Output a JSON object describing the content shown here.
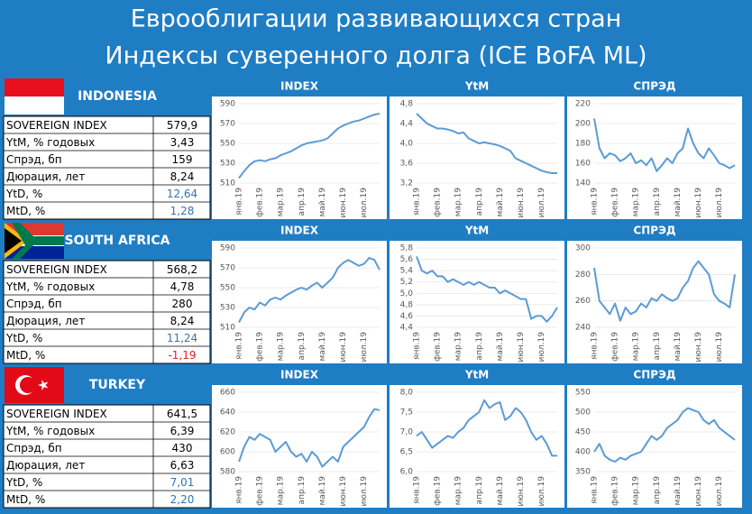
{
  "title": [
    "Еврооблигации развивающихся стран",
    "Индексы суверенного долга (ICE BoFA ML)"
  ],
  "panels": [
    {
      "country": "INDONESIA",
      "rows": [
        [
          "SOVEREIGN INDEX",
          "579,9"
        ],
        [
          "YtM, % годовых",
          "3,43"
        ],
        [
          "Спрэд, бп",
          "159"
        ],
        [
          "Дюрация, лет",
          "8,24"
        ],
        [
          "YtD, %",
          "12,64"
        ],
        [
          "MtD, %",
          "1,28"
        ]
      ]
    },
    {
      "country": "SOUTH AFRICA",
      "rows": [
        [
          "SOVEREIGN INDEX",
          "568,2"
        ],
        [
          "YtM, % годовых",
          "4,78"
        ],
        [
          "Спрэд, бп",
          "280"
        ],
        [
          "Дюрация, лет",
          "8,24"
        ],
        [
          "YtD, %",
          "11,24"
        ],
        [
          "MtD, %",
          "-1,19"
        ]
      ]
    },
    {
      "country": "TURKEY",
      "rows": [
        [
          "SOVEREIGN INDEX",
          "641,5"
        ],
        [
          "YtM, % годовых",
          "6,39"
        ],
        [
          "Спрэд, бп",
          "430"
        ],
        [
          "Дюрация, лет",
          "6,63"
        ],
        [
          "YtD, %",
          "7,01"
        ],
        [
          "MtD, %",
          "2,20"
        ]
      ]
    }
  ],
  "chart_data": [
    {
      "type": "line",
      "title": "INDEX",
      "color": "#5b9bd5",
      "categories": [
        "янв.19",
        null,
        null,
        null,
        "фев.19",
        null,
        null,
        null,
        "мар.19",
        null,
        null,
        null,
        "апр.19",
        null,
        null,
        null,
        "май.19",
        null,
        null,
        null,
        "июн.19",
        null,
        null,
        null,
        "июл.19",
        null,
        null,
        null
      ],
      "values": [
        515,
        522,
        528,
        532,
        533,
        532,
        534,
        535,
        538,
        540,
        542,
        545,
        548,
        550,
        551,
        552,
        553,
        555,
        560,
        565,
        568,
        570,
        572,
        573,
        575,
        577,
        579,
        580
      ],
      "ylim": [
        510,
        590
      ],
      "yticks": [
        510,
        530,
        550,
        570,
        590
      ]
    },
    {
      "type": "line",
      "title": "YtM",
      "color": "#5b9bd5",
      "categories": [
        "янв.19",
        null,
        null,
        null,
        "фев.19",
        null,
        null,
        null,
        "мар.19",
        null,
        null,
        null,
        "апр.19",
        null,
        null,
        null,
        "май.19",
        null,
        null,
        null,
        "июн.19",
        null,
        null,
        null,
        "июл.19",
        null,
        null,
        null
      ],
      "values": [
        4.6,
        4.5,
        4.4,
        4.35,
        4.3,
        4.3,
        4.28,
        4.25,
        4.2,
        4.22,
        4.1,
        4.05,
        4.0,
        4.02,
        4.0,
        3.98,
        3.95,
        3.9,
        3.85,
        3.7,
        3.65,
        3.6,
        3.55,
        3.5,
        3.45,
        3.42,
        3.4,
        3.4
      ],
      "ylim": [
        3.2,
        4.8
      ],
      "yticks": [
        {
          "value": 3.2,
          "label": "3,2"
        },
        {
          "value": 3.6,
          "label": "3,6"
        },
        {
          "value": 4.0,
          "label": "4,0"
        },
        {
          "value": 4.4,
          "label": "4,4"
        },
        {
          "value": 4.8,
          "label": "4,8"
        }
      ]
    },
    {
      "type": "line",
      "title": "СПРЭД",
      "color": "#5b9bd5",
      "categories": [
        "янв.19",
        null,
        null,
        null,
        "фев.19",
        null,
        null,
        null,
        "мар.19",
        null,
        null,
        null,
        "апр.19",
        null,
        null,
        null,
        "май.19",
        null,
        null,
        null,
        "июн.19",
        null,
        null,
        null,
        "июл.19",
        null,
        null,
        null
      ],
      "values": [
        205,
        175,
        165,
        170,
        168,
        162,
        165,
        170,
        160,
        163,
        158,
        165,
        152,
        158,
        165,
        160,
        170,
        175,
        195,
        180,
        170,
        165,
        175,
        168,
        160,
        158,
        155,
        158
      ],
      "ylim": [
        140,
        220
      ],
      "yticks": [
        140,
        160,
        180,
        200,
        220
      ]
    },
    {
      "type": "line",
      "title": "INDEX",
      "color": "#5b9bd5",
      "categories": [
        "янв.19",
        null,
        null,
        null,
        "фев.19",
        null,
        null,
        null,
        "мар.19",
        null,
        null,
        null,
        "апр.19",
        null,
        null,
        null,
        "май.19",
        null,
        null,
        null,
        "июн.19",
        null,
        null,
        null,
        "июл.19",
        null,
        null,
        null
      ],
      "values": [
        515,
        525,
        530,
        528,
        535,
        532,
        538,
        540,
        538,
        542,
        545,
        548,
        550,
        548,
        552,
        555,
        550,
        555,
        560,
        570,
        575,
        578,
        575,
        572,
        574,
        580,
        578,
        568
      ],
      "ylim": [
        510,
        590
      ],
      "yticks": [
        510,
        530,
        550,
        570,
        590
      ]
    },
    {
      "type": "line",
      "title": "YtM",
      "color": "#5b9bd5",
      "categories": [
        "янв.19",
        null,
        null,
        null,
        "фев.19",
        null,
        null,
        null,
        "мар.19",
        null,
        null,
        null,
        "апр.19",
        null,
        null,
        null,
        "май.19",
        null,
        null,
        null,
        "июн.19",
        null,
        null,
        null,
        "июл.19",
        null,
        null,
        null
      ],
      "values": [
        5.65,
        5.4,
        5.35,
        5.4,
        5.3,
        5.3,
        5.2,
        5.25,
        5.2,
        5.15,
        5.2,
        5.15,
        5.2,
        5.15,
        5.1,
        5.1,
        5.0,
        5.05,
        5.0,
        4.95,
        4.9,
        4.9,
        4.55,
        4.6,
        4.6,
        4.5,
        4.6,
        4.75
      ],
      "ylim": [
        4.4,
        5.8
      ],
      "yticks": [
        {
          "value": 4.4,
          "label": "4,4"
        },
        {
          "value": 4.6,
          "label": "4,6"
        },
        {
          "value": 4.8,
          "label": "4,8"
        },
        {
          "value": 5.0,
          "label": "5,0"
        },
        {
          "value": 5.2,
          "label": "5,2"
        },
        {
          "value": 5.4,
          "label": "5,4"
        },
        {
          "value": 5.6,
          "label": "5,6"
        },
        {
          "value": 5.8,
          "label": "5,8"
        }
      ]
    },
    {
      "type": "line",
      "title": "СПРЭД",
      "color": "#5b9bd5",
      "categories": [
        "янв.19",
        null,
        null,
        null,
        "фев.19",
        null,
        null,
        null,
        "мар.19",
        null,
        null,
        null,
        "апр.19",
        null,
        null,
        null,
        "май.19",
        null,
        null,
        null,
        "июн.19",
        null,
        null,
        null,
        "июл.19",
        null,
        null,
        null
      ],
      "values": [
        285,
        260,
        255,
        250,
        258,
        245,
        255,
        250,
        252,
        258,
        255,
        262,
        260,
        265,
        262,
        260,
        262,
        270,
        275,
        285,
        290,
        285,
        280,
        265,
        260,
        258,
        255,
        280
      ],
      "ylim": [
        240,
        300
      ],
      "yticks": [
        240,
        260,
        280,
        300
      ]
    },
    {
      "type": "line",
      "title": "INDEX",
      "color": "#5b9bd5",
      "categories": [
        "янв.19",
        null,
        null,
        null,
        "фев.19",
        null,
        null,
        null,
        "мар.19",
        null,
        null,
        null,
        "апр.19",
        null,
        null,
        null,
        "май.19",
        null,
        null,
        null,
        "июн.19",
        null,
        null,
        null,
        "июл.19",
        null,
        null,
        null
      ],
      "values": [
        590,
        605,
        615,
        612,
        618,
        615,
        612,
        600,
        605,
        610,
        600,
        595,
        598,
        590,
        600,
        595,
        585,
        590,
        595,
        590,
        605,
        610,
        615,
        620,
        625,
        635,
        643,
        642
      ],
      "ylim": [
        580,
        660
      ],
      "yticks": [
        580,
        600,
        620,
        640,
        660
      ]
    },
    {
      "type": "line",
      "title": "YtM",
      "color": "#5b9bd5",
      "categories": [
        "янв.19",
        null,
        null,
        null,
        "фев.19",
        null,
        null,
        null,
        "мар.19",
        null,
        null,
        null,
        "апр.19",
        null,
        null,
        null,
        "май.19",
        null,
        null,
        null,
        "июн.19",
        null,
        null,
        null,
        "июл.19",
        null,
        null,
        null
      ],
      "values": [
        6.9,
        7.0,
        6.8,
        6.6,
        6.7,
        6.8,
        6.9,
        6.85,
        7.0,
        7.1,
        7.3,
        7.4,
        7.5,
        7.8,
        7.6,
        7.7,
        7.75,
        7.3,
        7.4,
        7.6,
        7.5,
        7.3,
        7.0,
        6.8,
        6.9,
        6.7,
        6.4,
        6.4
      ],
      "ylim": [
        6.0,
        8.0
      ],
      "yticks": [
        {
          "value": 6.0,
          "label": "6,0"
        },
        {
          "value": 6.5,
          "label": "6,5"
        },
        {
          "value": 7.0,
          "label": "7,0"
        },
        {
          "value": 7.5,
          "label": "7,5"
        },
        {
          "value": 8.0,
          "label": "8,0"
        }
      ]
    },
    {
      "type": "line",
      "title": "СПРЭД",
      "color": "#5b9bd5",
      "categories": [
        "янв.19",
        null,
        null,
        null,
        "фев.19",
        null,
        null,
        null,
        "мар.19",
        null,
        null,
        null,
        "апр.19",
        null,
        null,
        null,
        "май.19",
        null,
        null,
        null,
        "июн.19",
        null,
        null,
        null,
        "июл.19",
        null,
        null,
        null
      ],
      "values": [
        400,
        420,
        390,
        380,
        375,
        385,
        380,
        390,
        395,
        400,
        420,
        440,
        430,
        440,
        460,
        470,
        480,
        500,
        510,
        505,
        500,
        480,
        470,
        480,
        460,
        450,
        440,
        430
      ],
      "ylim": [
        350,
        550
      ],
      "yticks": [
        350,
        400,
        450,
        500,
        550
      ]
    }
  ]
}
